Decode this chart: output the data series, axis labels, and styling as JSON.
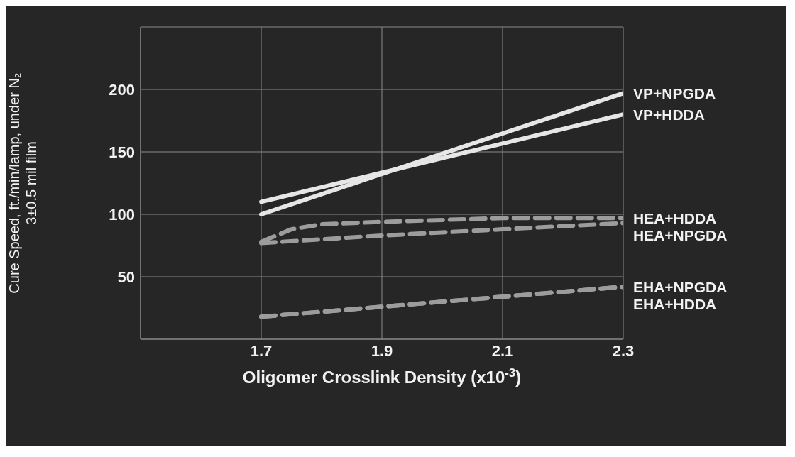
{
  "chart_data": {
    "type": "line",
    "xlabel": "Oligomer Crosslink Density (x10$^{-3}$)",
    "ylabel": "Cure Speed, ft./min/lamp, under N₂\n3±0.5 mil film",
    "xlim": [
      1.5,
      2.3
    ],
    "xticks": [
      1.7,
      1.9,
      2.1,
      2.3
    ],
    "ylim": [
      0,
      250
    ],
    "yticks": [
      50,
      100,
      150,
      200
    ],
    "grid": true,
    "marker": "none",
    "series": [
      {
        "name": "VP+NPGDA",
        "color": "#e6e6e6",
        "line_style": "solid",
        "x": [
          1.7,
          2.3
        ],
        "values": [
          100,
          197
        ]
      },
      {
        "name": "VP+HDDA",
        "color": "#e6e6e6",
        "line_style": "solid",
        "x": [
          1.7,
          2.3
        ],
        "values": [
          110,
          180
        ]
      },
      {
        "name": "HEA+HDDA",
        "color": "#9c9c9c",
        "line_style": "dashed",
        "x": [
          1.7,
          1.75,
          1.8,
          1.9,
          2.1,
          2.3
        ],
        "values": [
          78,
          88,
          92,
          94,
          97,
          97
        ]
      },
      {
        "name": "HEA+NPGDA",
        "color": "#9c9c9c",
        "line_style": "dashed",
        "x": [
          1.7,
          1.8,
          1.9,
          2.1,
          2.3
        ],
        "values": [
          77,
          80,
          83,
          88,
          93
        ]
      },
      {
        "name": "EHA+NPGDA",
        "color": "#9c9c9c",
        "line_style": "dashed",
        "x": [
          1.7,
          2.3
        ],
        "values": [
          18,
          42
        ]
      },
      {
        "name": "EHA+HDDA",
        "color": "#9c9c9c",
        "line_style": "dashed",
        "x": [
          1.7,
          2.3
        ],
        "values": [
          18,
          42
        ]
      }
    ]
  }
}
